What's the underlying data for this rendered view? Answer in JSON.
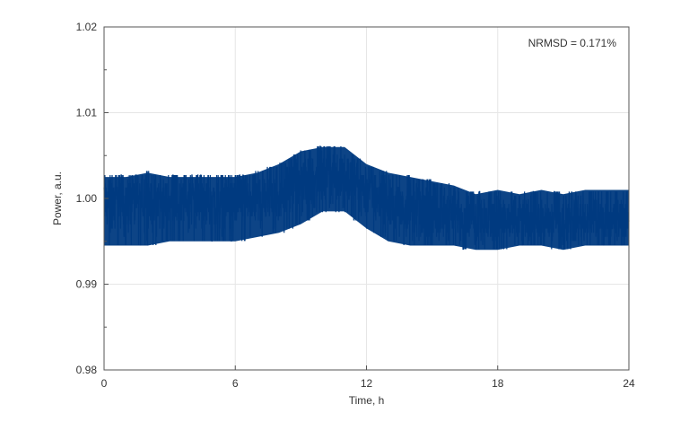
{
  "chart_data": {
    "type": "line",
    "title": "",
    "xlabel": "Time, h",
    "ylabel": "Power, a.u.",
    "xlim": [
      0,
      24
    ],
    "ylim": [
      0.98,
      1.02
    ],
    "xticks": [
      0,
      6,
      12,
      18,
      24
    ],
    "xtick_labels": [
      "0",
      "6",
      "12",
      "18",
      "24"
    ],
    "yticks": [
      0.98,
      0.99,
      1.0,
      1.01,
      1.02
    ],
    "ytick_labels": [
      "0.98",
      "0.99",
      "1.00",
      "1.01",
      "1.02"
    ],
    "grid": true,
    "annotation": "NRMSD = 0.171%",
    "series": [
      {
        "color": "#003a80",
        "x": [
          0,
          1,
          2,
          3,
          4,
          5,
          6,
          7,
          8,
          9,
          10,
          11,
          12,
          13,
          14,
          15,
          16,
          17,
          18,
          19,
          20,
          21,
          22,
          23,
          24
        ],
        "min": [
          0.9945,
          0.9945,
          0.9945,
          0.995,
          0.995,
          0.995,
          0.995,
          0.9955,
          0.996,
          0.997,
          0.9985,
          0.9985,
          0.9965,
          0.995,
          0.9945,
          0.9945,
          0.9945,
          0.994,
          0.994,
          0.9945,
          0.9945,
          0.994,
          0.9945,
          0.9945,
          0.9945
        ],
        "max": [
          1.0025,
          1.0025,
          1.003,
          1.0025,
          1.0025,
          1.0025,
          1.0025,
          1.003,
          1.004,
          1.0055,
          1.006,
          1.006,
          1.004,
          1.003,
          1.0025,
          1.002,
          1.0015,
          1.0005,
          1.001,
          1.0005,
          1.001,
          1.0005,
          1.001,
          1.001,
          1.001
        ],
        "mean": [
          0.9995,
          0.9995,
          1.0,
          0.9995,
          1.0,
          0.9995,
          1.0,
          1.0,
          1.0005,
          1.0015,
          1.0025,
          1.003,
          1.001,
          0.9995,
          0.999,
          0.9985,
          0.9985,
          0.9975,
          0.9975,
          0.9975,
          0.9975,
          0.9975,
          0.9975,
          0.9975,
          0.9975
        ]
      }
    ]
  }
}
